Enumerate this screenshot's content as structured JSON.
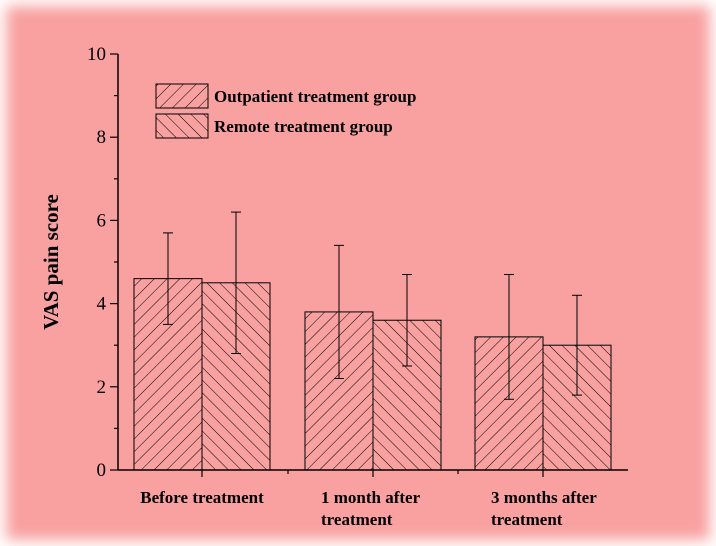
{
  "chart_data": {
    "type": "bar",
    "title": "",
    "xlabel": "",
    "ylabel": "VAS pain score",
    "ylim": [
      0,
      10
    ],
    "yticks": [
      "0",
      "2",
      "4",
      "6",
      "8",
      "10"
    ],
    "categories": [
      [
        "Before treatment"
      ],
      [
        "1 month after",
        "treatment"
      ],
      [
        "3 months after",
        "treatment"
      ]
    ],
    "series": [
      {
        "name": "Outpatient treatment group",
        "values": [
          4.6,
          3.8,
          3.2
        ],
        "errors": [
          1.1,
          1.6,
          1.5
        ],
        "hatch": "forward-diagonal"
      },
      {
        "name": "Remote treatment group",
        "values": [
          4.5,
          3.6,
          3.0
        ],
        "errors": [
          1.7,
          1.1,
          1.2
        ],
        "hatch": "backward-diagonal"
      }
    ],
    "legend_position": "top-left",
    "grid": false,
    "colors": {
      "background": "#f9a1a1",
      "bar_fill": "#f9a1a1",
      "ink": "#000000"
    }
  }
}
